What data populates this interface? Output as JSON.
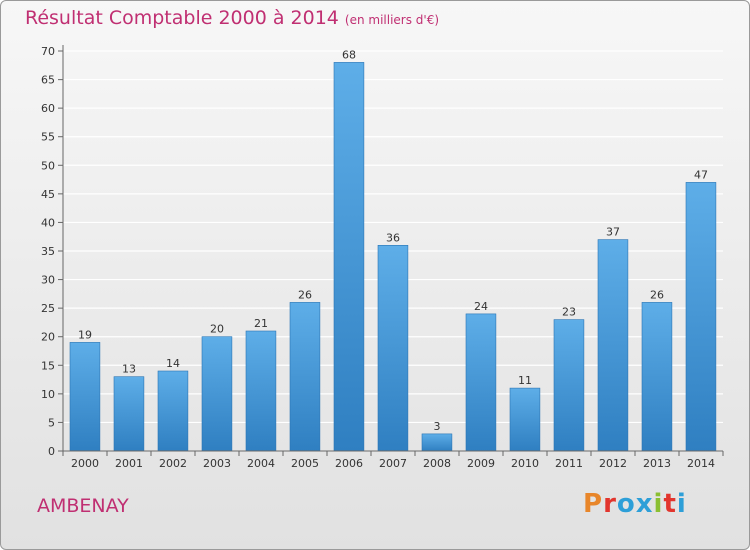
{
  "title": "Résultat Comptable 2000 à 2014",
  "subtitle": "(en milliers d'€)",
  "commune": "AMBENAY",
  "logo": {
    "text": "Proxiti",
    "colors": [
      "#e8862a",
      "#e2352d",
      "#2d9fd8",
      "#2d9fd8",
      "#8bbf32",
      "#e2352d",
      "#2d9fd8"
    ]
  },
  "colors": {
    "title": "#c02f72",
    "bar_light": "#5eaee8",
    "bar_dark": "#2f7fc1"
  },
  "chart_data": {
    "type": "bar",
    "title": "Résultat Comptable 2000 à 2014",
    "subtitle": "(en milliers d'€)",
    "categories": [
      "2000",
      "2001",
      "2002",
      "2003",
      "2004",
      "2005",
      "2006",
      "2007",
      "2008",
      "2009",
      "2010",
      "2011",
      "2012",
      "2013",
      "2014"
    ],
    "values": [
      19,
      13,
      14,
      20,
      21,
      26,
      68,
      36,
      3,
      24,
      11,
      23,
      37,
      26,
      47
    ],
    "ylim": [
      0,
      70
    ],
    "yticks": [
      0,
      5,
      10,
      15,
      20,
      25,
      30,
      35,
      40,
      45,
      50,
      55,
      60,
      65,
      70
    ],
    "grid": true,
    "data_labels": true
  }
}
